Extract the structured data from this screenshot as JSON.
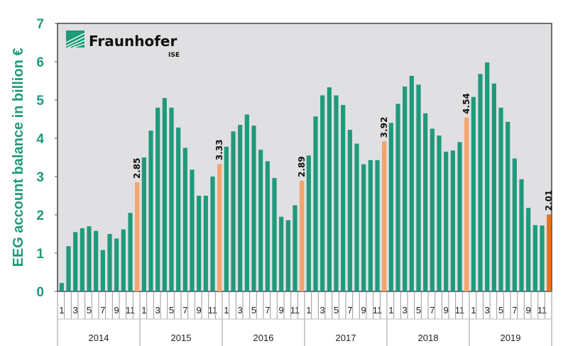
{
  "chart_data": {
    "type": "bar",
    "title": "",
    "ylabel": "EEG account balance in billion €",
    "xlabel": "",
    "ylim": [
      0,
      7
    ],
    "yticks": [
      0,
      1,
      2,
      3,
      4,
      5,
      6,
      7
    ],
    "grid": false,
    "years": [
      "2014",
      "2015",
      "2016",
      "2017",
      "2018",
      "2019"
    ],
    "month_tick_labels": [
      "1",
      "3",
      "5",
      "7",
      "9",
      "11"
    ],
    "series": [
      {
        "name": "2014",
        "values": [
          0.22,
          1.18,
          1.55,
          1.65,
          1.7,
          1.58,
          1.08,
          1.5,
          1.38,
          1.62,
          2.05,
          2.85
        ]
      },
      {
        "name": "2015",
        "values": [
          3.5,
          4.2,
          4.8,
          5.05,
          4.8,
          4.28,
          3.75,
          3.18,
          2.5,
          2.5,
          3.0,
          3.33
        ]
      },
      {
        "name": "2016",
        "values": [
          3.78,
          4.18,
          4.35,
          4.62,
          4.33,
          3.7,
          3.4,
          2.96,
          1.95,
          1.86,
          2.25,
          2.89
        ]
      },
      {
        "name": "2017",
        "values": [
          3.55,
          4.57,
          5.12,
          5.33,
          5.12,
          4.87,
          4.22,
          3.86,
          3.32,
          3.43,
          3.43,
          3.92
        ]
      },
      {
        "name": "2018",
        "values": [
          4.4,
          4.9,
          5.35,
          5.63,
          5.4,
          4.65,
          4.25,
          4.07,
          3.65,
          3.68,
          3.9,
          4.54
        ]
      },
      {
        "name": "2019",
        "values": [
          5.08,
          5.68,
          5.98,
          5.43,
          4.8,
          4.43,
          3.47,
          2.93,
          2.18,
          1.73,
          1.72,
          2.01
        ]
      }
    ],
    "annotations": [
      "2.85",
      "3.33",
      "2.89",
      "3.92",
      "4.54",
      "2.01"
    ],
    "colors": {
      "bar": "#1f9a7a",
      "december": "#f4a46c",
      "latest": "#e8731c",
      "plot_bg": "#e0e0e3"
    }
  },
  "logo": {
    "name": "Fraunhofer",
    "sub": "ISE"
  }
}
